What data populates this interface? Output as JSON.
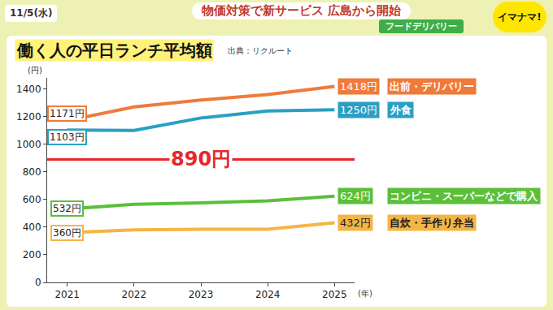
{
  "header": {
    "date": "11/5(水)",
    "headline": "物価対策で新サービス 広島から開始",
    "tag": "フードデリバリー",
    "logo": "イマナマ!"
  },
  "chart_data": {
    "type": "line",
    "title": "働く人の平日ランチ平均額",
    "source": "出典：リクルート",
    "ylabel": "(円)",
    "xlabel": "(年)",
    "x": [
      2021,
      2022,
      2023,
      2024,
      2025
    ],
    "xlim": [
      2020.7,
      2025.3
    ],
    "xticks": [
      2021,
      2022,
      2023,
      2024,
      2025
    ],
    "ylim": [
      0,
      1480
    ],
    "yticks": [
      0,
      200,
      400,
      600,
      800,
      1000,
      1200,
      1400
    ],
    "grid": false,
    "series": [
      {
        "name": "出前・デリバリー",
        "color": "#f07a3a",
        "values": [
          1171,
          1270,
          1320,
          1360,
          1418
        ],
        "value_labels": [
          "1171円",
          null,
          null,
          null,
          "1418円"
        ]
      },
      {
        "name": "外食",
        "color": "#2a9fc4",
        "values": [
          1103,
          1100,
          1190,
          1240,
          1250
        ],
        "value_labels": [
          "1103円",
          null,
          null,
          null,
          "1250円"
        ]
      },
      {
        "name": "コンビニ・スーパーなどで購入",
        "color": "#5cbf3a",
        "values": [
          532,
          565,
          575,
          590,
          624
        ],
        "value_labels": [
          "532円",
          null,
          null,
          null,
          "624円"
        ]
      },
      {
        "name": "自炊・手作り弁当",
        "color": "#f5b545",
        "values": [
          360,
          380,
          385,
          385,
          432
        ],
        "value_labels": [
          "360円",
          null,
          null,
          null,
          "432円"
        ]
      }
    ],
    "reference_line": {
      "value": 890,
      "label": "890円",
      "color": "#e8262a"
    }
  }
}
